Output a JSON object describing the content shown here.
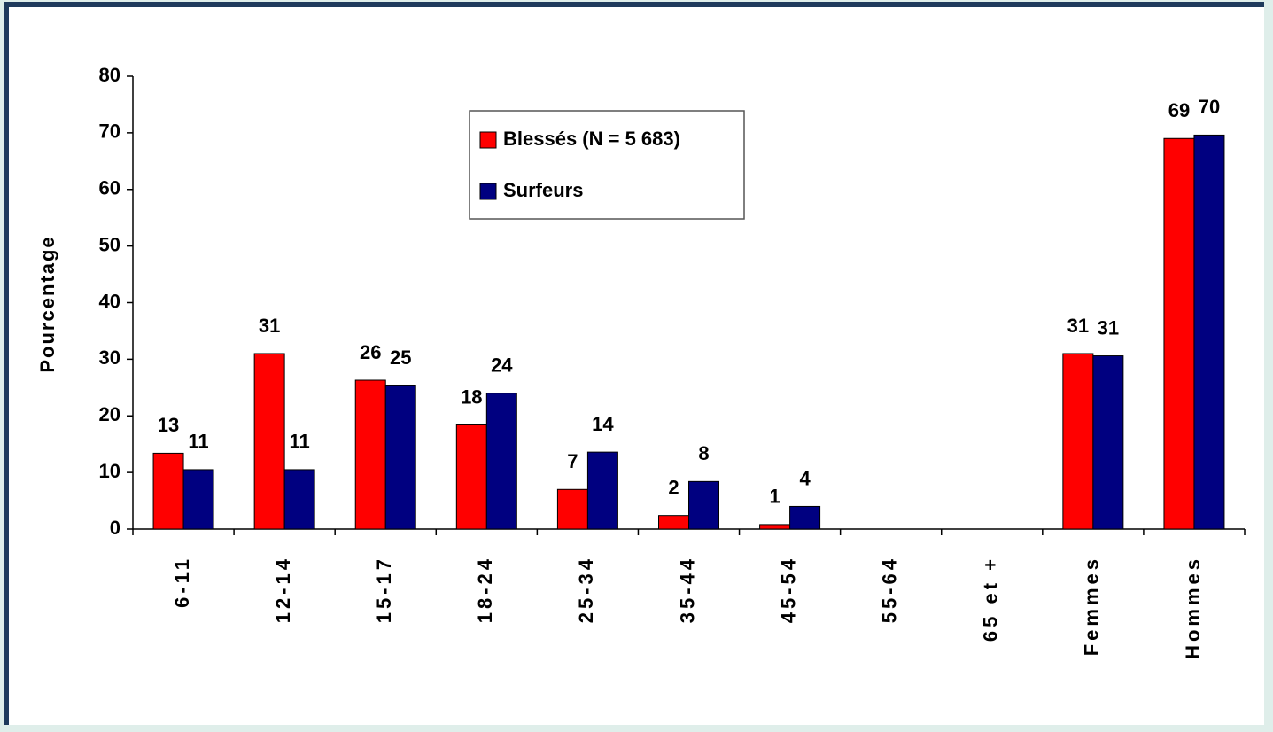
{
  "chart_data": {
    "type": "bar",
    "y_label": "Pourcentage",
    "categories": [
      "6-11",
      "12-14",
      "15-17",
      "18-24",
      "25-34",
      "35-44",
      "45-54",
      "55-64",
      "65 et +",
      "Femmes",
      "Hommes"
    ],
    "series": [
      {
        "name": "Blessés (N = 5 683)",
        "color": "#ff0000",
        "values": [
          13.4,
          31,
          26.3,
          18.4,
          7,
          2.4,
          0.8,
          null,
          null,
          31,
          69
        ],
        "value_labels": [
          "13",
          "31",
          "26",
          "18",
          "7",
          "2",
          "1",
          null,
          null,
          "31",
          "69"
        ]
      },
      {
        "name": "Surfeurs",
        "color": "#000080",
        "values": [
          10.5,
          10.5,
          25.3,
          24,
          13.6,
          8.4,
          4,
          null,
          null,
          30.6,
          69.6
        ],
        "value_labels": [
          "11",
          "11",
          "25",
          "24",
          "14",
          "8",
          "4",
          null,
          null,
          "31",
          "70"
        ]
      }
    ],
    "ylim": [
      0,
      80
    ],
    "yticks": [
      0,
      10,
      20,
      30,
      40,
      50,
      60,
      70,
      80
    ],
    "grid": false,
    "legend": "upper center"
  }
}
